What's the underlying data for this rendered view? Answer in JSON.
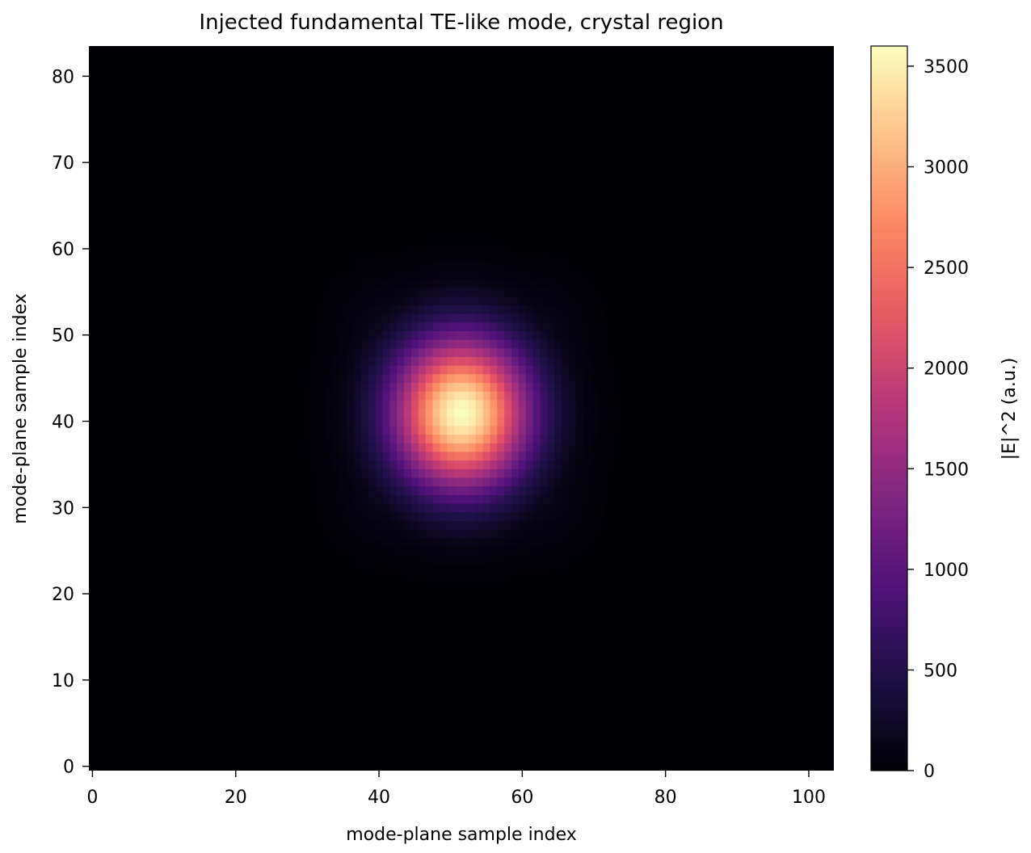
{
  "chart_data": {
    "type": "heatmap",
    "title": "Injected fundamental TE-like mode, crystal region",
    "xlabel": "mode-plane sample index",
    "ylabel": "mode-plane sample index",
    "colorbar_label": "|E|^2 (a.u.)",
    "colormap": "magma",
    "x_range": [
      -0.5,
      103.5
    ],
    "y_range": [
      -0.5,
      83.5
    ],
    "value_range": [
      0,
      3600
    ],
    "x_ticks": [
      0,
      20,
      40,
      60,
      80,
      100
    ],
    "x_tick_labels": [
      "0",
      "20",
      "40",
      "60",
      "80",
      "100"
    ],
    "y_ticks": [
      0,
      10,
      20,
      30,
      40,
      50,
      60,
      70,
      80
    ],
    "y_tick_labels": [
      "0",
      "10",
      "20",
      "30",
      "40",
      "50",
      "60",
      "70",
      "80"
    ],
    "colorbar_ticks": [
      0,
      500,
      1000,
      1500,
      2000,
      2500,
      3000,
      3500
    ],
    "colorbar_tick_labels": [
      "0",
      "500",
      "1000",
      "1500",
      "2000",
      "2500",
      "3000",
      "3500"
    ],
    "grid": {
      "nx": 104,
      "ny": 84
    },
    "mode": {
      "peak": 3600,
      "center_x": 51.5,
      "center_y": 41.0,
      "core_sigma_x": 6.5,
      "core_sigma_y": 6.0,
      "halo_amplitude": 420,
      "halo_half_width_x": 12.5,
      "halo_half_width_y": 10.5,
      "halo_edge_softness": 2.0
    }
  }
}
